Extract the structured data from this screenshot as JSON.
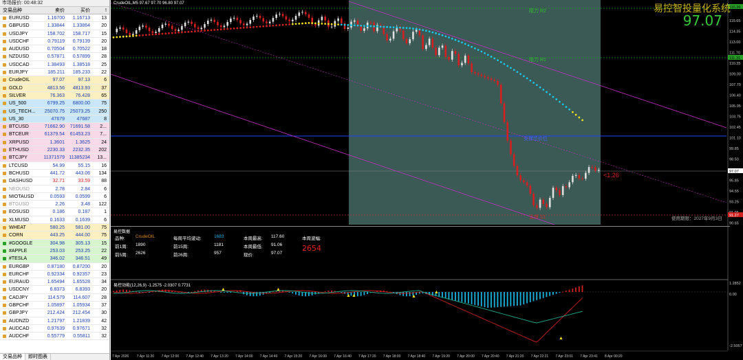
{
  "watchlist": {
    "title": "市场报价: 00:48:32",
    "headers": {
      "symbol": "交易品种",
      "bid": "卖价",
      "ask": "买价",
      "spread": "!"
    },
    "rows": [
      {
        "symbol": "EURUSD",
        "bid": "1.16700",
        "ask": "1.16713",
        "spread": "13",
        "dot": "orange",
        "hl": ""
      },
      {
        "symbol": "GBPUSD",
        "bid": "1.33844",
        "ask": "1.33864",
        "spread": "20",
        "dot": "orange",
        "hl": ""
      },
      {
        "symbol": "USDJPY",
        "bid": "158.702",
        "ask": "158.717",
        "spread": "15",
        "dot": "orange",
        "hl": ""
      },
      {
        "symbol": "USDCHF",
        "bid": "0.79119",
        "ask": "0.79139",
        "spread": "20",
        "dot": "orange",
        "hl": ""
      },
      {
        "symbol": "AUDUSD",
        "bid": "0.70504",
        "ask": "0.70522",
        "spread": "18",
        "dot": "orange",
        "hl": ""
      },
      {
        "symbol": "NZDUSD",
        "bid": "0.57871",
        "ask": "0.57899",
        "spread": "28",
        "dot": "orange",
        "hl": ""
      },
      {
        "symbol": "USDCAD",
        "bid": "1.38493",
        "ask": "1.38518",
        "spread": "25",
        "dot": "orange",
        "hl": ""
      },
      {
        "symbol": "EURJPY",
        "bid": "185.211",
        "ask": "185.233",
        "spread": "22",
        "dot": "orange",
        "hl": ""
      },
      {
        "symbol": "CrudeOIL",
        "bid": "97.07",
        "ask": "97.13",
        "spread": "6",
        "dot": "orange",
        "hl": "yellow"
      },
      {
        "symbol": "GOLD",
        "bid": "4813.56",
        "ask": "4813.93",
        "spread": "37",
        "dot": "orange",
        "hl": "yellow"
      },
      {
        "symbol": "SILVER",
        "bid": "76.363",
        "ask": "76.428",
        "spread": "65",
        "dot": "orange",
        "hl": "yellow"
      },
      {
        "symbol": "US_500",
        "bid": "6799.25",
        "ask": "6800.00",
        "spread": "75",
        "dot": "orange",
        "hl": "blue"
      },
      {
        "symbol": "US_TECH...",
        "bid": "25070.75",
        "ask": "25073.25",
        "spread": "250",
        "dot": "orange",
        "hl": "blue"
      },
      {
        "symbol": "US_30",
        "bid": "47679",
        "ask": "47687",
        "spread": "8",
        "dot": "orange",
        "hl": "blue"
      },
      {
        "symbol": "BTCUSD",
        "bid": "71662.90",
        "ask": "71691.58",
        "spread": "2...",
        "dot": "orange",
        "hl": "pink"
      },
      {
        "symbol": "BTCEUR",
        "bid": "61379.54",
        "ask": "61453.23",
        "spread": "7...",
        "dot": "orange",
        "hl": "pink"
      },
      {
        "symbol": "XRPUSD",
        "bid": "1.3601",
        "ask": "1.3625",
        "spread": "24",
        "dot": "orange",
        "hl": "pink"
      },
      {
        "symbol": "ETHUSD",
        "bid": "2230.33",
        "ask": "2232.35",
        "spread": "202",
        "dot": "orange",
        "hl": "pink"
      },
      {
        "symbol": "BTCJPY",
        "bid": "11371579",
        "ask": "11385234",
        "spread": "13...",
        "dot": "orange",
        "hl": "pink"
      },
      {
        "symbol": "LTCUSD",
        "bid": "54.99",
        "ask": "55.15",
        "spread": "16",
        "dot": "orange",
        "hl": ""
      },
      {
        "symbol": "BCHUSD",
        "bid": "441.72",
        "ask": "443.06",
        "spread": "134",
        "dot": "orange",
        "hl": ""
      },
      {
        "symbol": "DASHUSD",
        "bid": "32.71",
        "ask": "33.59",
        "spread": "88",
        "dot": "orange",
        "hl": "",
        "down": true
      },
      {
        "symbol": "NEOUSD",
        "bid": "2.78",
        "ask": "2.84",
        "spread": "6",
        "dot": "orange",
        "hl": "",
        "dim": true
      },
      {
        "symbol": "MIOTAUSD",
        "bid": "0.0593",
        "ask": "0.0599",
        "spread": "6",
        "dot": "orange",
        "hl": ""
      },
      {
        "symbol": "BTGUSD",
        "bid": "2.26",
        "ask": "3.48",
        "spread": "122",
        "dot": "orange",
        "hl": "",
        "dim": true
      },
      {
        "symbol": "EOSUSD",
        "bid": "0.186",
        "ask": "0.187",
        "spread": "1",
        "dot": "orange",
        "hl": ""
      },
      {
        "symbol": "XLMUSD",
        "bid": "0.1633",
        "ask": "0.1639",
        "spread": "6",
        "dot": "orange",
        "hl": ""
      },
      {
        "symbol": "WHEAT",
        "bid": "580.25",
        "ask": "581.00",
        "spread": "75",
        "dot": "orange",
        "hl": "yellow"
      },
      {
        "symbol": "CORN",
        "bid": "443.25",
        "ask": "444.00",
        "spread": "75",
        "dot": "orange",
        "hl": "yellow"
      },
      {
        "symbol": "#GOOGLE",
        "bid": "304.98",
        "ask": "305.13",
        "spread": "15",
        "dot": "green",
        "hl": "green"
      },
      {
        "symbol": "#APPLE",
        "bid": "253.03",
        "ask": "253.25",
        "spread": "22",
        "dot": "green",
        "hl": "green"
      },
      {
        "symbol": "#TESLA",
        "bid": "346.02",
        "ask": "346.51",
        "spread": "49",
        "dot": "green",
        "hl": "green"
      },
      {
        "symbol": "EURGBP",
        "bid": "0.87180",
        "ask": "0.87200",
        "spread": "20",
        "dot": "orange",
        "hl": ""
      },
      {
        "symbol": "EURCHF",
        "bid": "0.92334",
        "ask": "0.92357",
        "spread": "23",
        "dot": "orange",
        "hl": ""
      },
      {
        "symbol": "EURAUD",
        "bid": "1.65494",
        "ask": "1.65528",
        "spread": "34",
        "dot": "orange",
        "hl": ""
      },
      {
        "symbol": "USDCNY",
        "bid": "6.8373",
        "ask": "6.8393",
        "spread": "20",
        "dot": "orange",
        "hl": ""
      },
      {
        "symbol": "CADJPY",
        "bid": "114.579",
        "ask": "114.607",
        "spread": "28",
        "dot": "orange",
        "hl": ""
      },
      {
        "symbol": "GBPCHF",
        "bid": "1.05897",
        "ask": "1.05934",
        "spread": "37",
        "dot": "orange",
        "hl": ""
      },
      {
        "symbol": "GBPJPY",
        "bid": "212.424",
        "ask": "212.454",
        "spread": "30",
        "dot": "orange",
        "hl": ""
      },
      {
        "symbol": "AUDNZD",
        "bid": "1.21797",
        "ask": "1.21839",
        "spread": "42",
        "dot": "orange",
        "hl": ""
      },
      {
        "symbol": "AUDCAD",
        "bid": "0.97639",
        "ask": "0.97671",
        "spread": "32",
        "dot": "orange",
        "hl": ""
      },
      {
        "symbol": "AUDCHF",
        "bid": "0.55779",
        "ask": "0.55811",
        "spread": "32",
        "dot": "orange",
        "hl": ""
      }
    ],
    "tabs": [
      "交易品种",
      "即时图表"
    ]
  },
  "chart": {
    "title": "CrudeOIL,M5  97.67 97.70 96.80 97.07",
    "brand": "易控智投量化系统",
    "big_price": "97.07",
    "current_price_tag": "97.07",
    "change_label": "<1.26",
    "resistance2_label": "阻力 R2",
    "resistance1_label": "阻力 R1",
    "support_label": "支撑位价位",
    "support_s_label": "支撑 S1",
    "expiry_label": "使用期限：2027年9月3日",
    "price_axis": [
      "115.65",
      "114.35",
      "113.00",
      "111.70",
      "110.35",
      "109.00",
      "107.70",
      "106.40",
      "105.05",
      "103.75",
      "102.45",
      "101.10",
      "99.85",
      "98.50",
      "97.20",
      "95.85",
      "94.55",
      "93.25",
      "91.95",
      "90.65"
    ],
    "price_axis_highlights": {
      "top": "116.36",
      "mid": "111.31",
      "bottom": "91.27"
    },
    "colors": {
      "candle_up": "#e0e0e0",
      "candle_down": "#d42020",
      "channel": "#c030c0",
      "dots_cyan": "#19c8e8",
      "dots_red": "#d02020",
      "dots_yellow": "#f0e020",
      "highlight": "#3e5e5a"
    }
  },
  "panel2": {
    "title": "易控数据",
    "stats": [
      {
        "label": "品种:",
        "value": "CrudeOIL",
        "color": "orange"
      },
      {
        "label": "前1周:",
        "value": "1890",
        "color": ""
      },
      {
        "label": "前5周:",
        "value": "2626",
        "color": ""
      },
      {
        "label": "每周平均波动:",
        "value": "1683",
        "color": "cyan"
      },
      {
        "label": "前15周:",
        "value": "1181",
        "color": ""
      },
      {
        "label": "前26周:",
        "value": "957",
        "color": ""
      },
      {
        "label": "本周最高:",
        "value": "117.60",
        "color": ""
      },
      {
        "label": "本周最低:",
        "value": "91.06",
        "color": ""
      },
      {
        "label": "现价:",
        "value": "97.07",
        "color": ""
      },
      {
        "label": "本周波幅:",
        "value": "2654",
        "color": "red"
      }
    ]
  },
  "panel3": {
    "title": "易控动能(12,26,9) -1.2575 -2.0307 0.7731",
    "axis": [
      "1.2852",
      "0.00",
      "-2.5057"
    ]
  },
  "time_axis": [
    "7 Apr 2026",
    "7 Apr 11:20",
    "7 Apr 12:00",
    "7 Apr 12:40",
    "7 Apr 13:20",
    "7 Apr 14:00",
    "7 Apr 14:40",
    "7 Apr 15:20",
    "7 Apr 16:00",
    "7 Apr 16:40",
    "7 Apr 17:20",
    "7 Apr 18:00",
    "7 Apr 18:40",
    "7 Apr 19:20",
    "7 Apr 20:00",
    "7 Apr 20:40",
    "7 Apr 21:20",
    "7 Apr 22:21",
    "7 Apr 23:01",
    "7 Apr 23:41",
    "8 Apr 00:20"
  ]
}
